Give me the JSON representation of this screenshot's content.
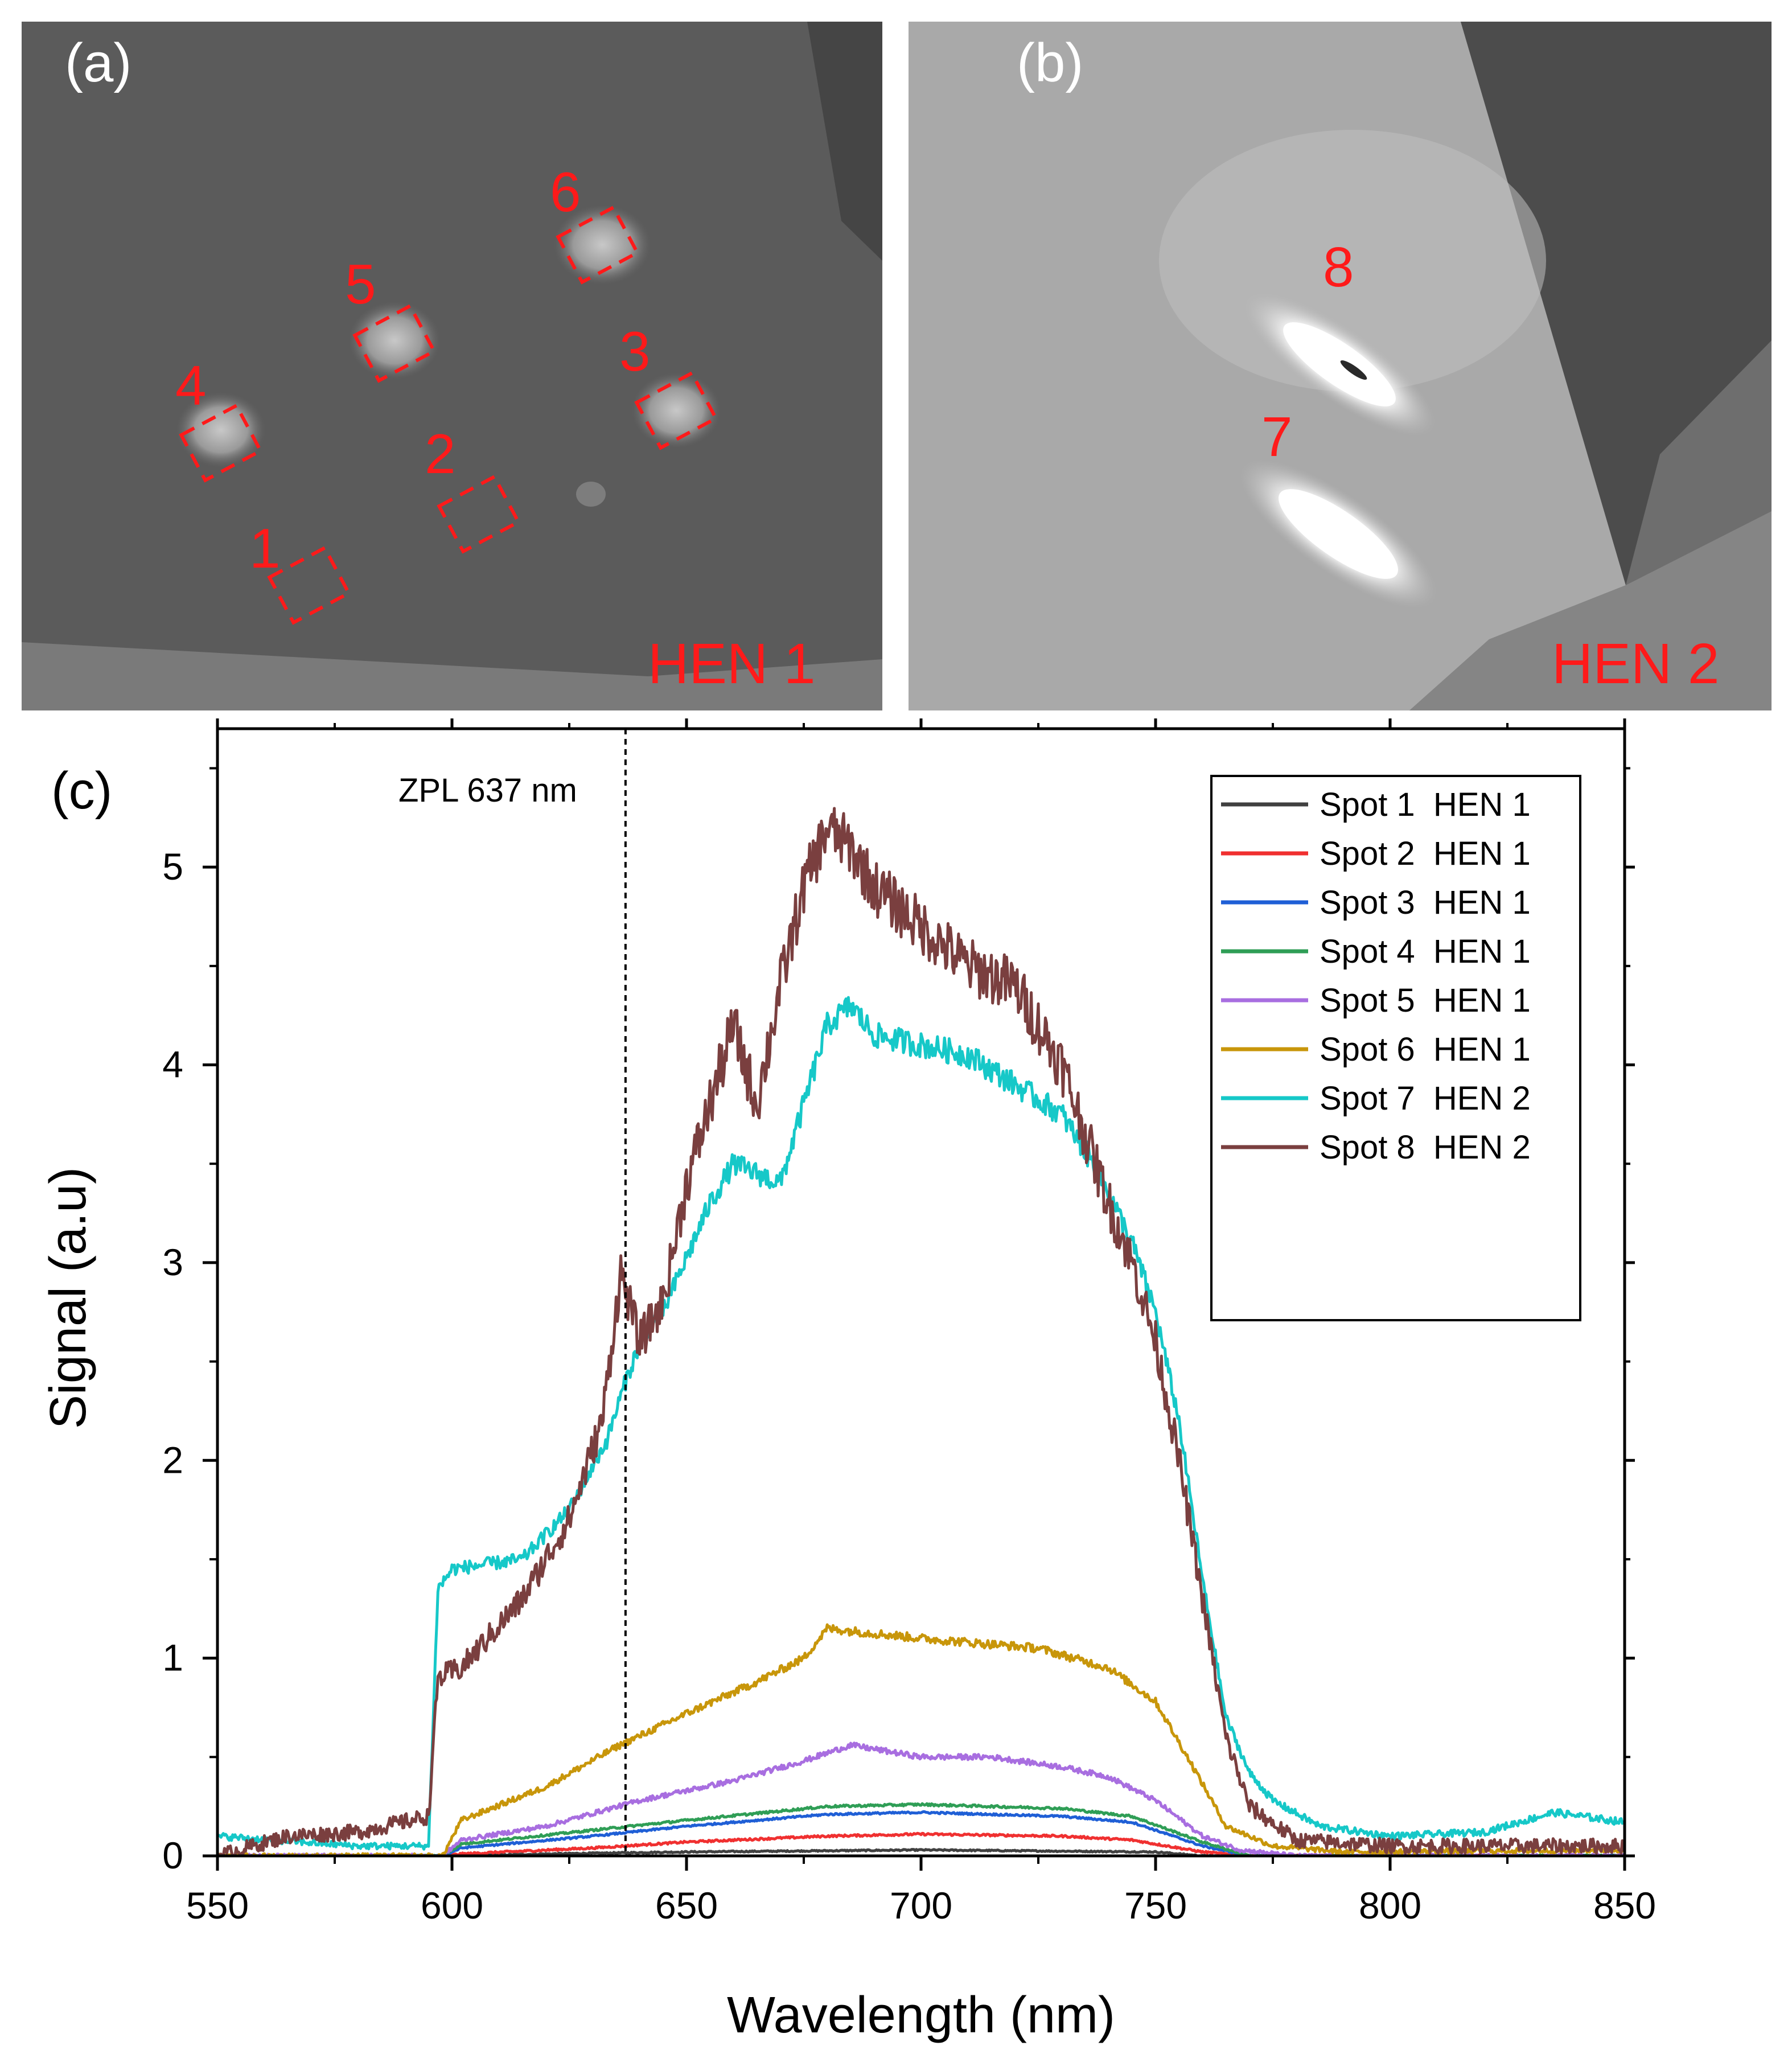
{
  "panels": {
    "a": {
      "label": "(a)",
      "sample": "HEN 1",
      "spots": [
        "1",
        "2",
        "3",
        "4",
        "5",
        "6"
      ]
    },
    "b": {
      "label": "(b)",
      "sample": "HEN 2",
      "spots": [
        "7",
        "8"
      ]
    }
  },
  "chart_data": {
    "type": "line",
    "panel_label": "(c)",
    "xlabel": "Wavelength (nm)",
    "ylabel": "Signal (a.u)",
    "xlim": [
      550,
      850
    ],
    "ylim": [
      0,
      5.7
    ],
    "xticks": [
      550,
      600,
      650,
      700,
      750,
      800,
      850
    ],
    "yticks": [
      0,
      1,
      2,
      3,
      4,
      5
    ],
    "legend_position": "top-right",
    "annotation": {
      "text": "ZPL 637 nm",
      "x": 637
    },
    "series": [
      {
        "name": "Spot 1  HEN 1",
        "color": "#404040",
        "noise": 0.008,
        "points": [
          [
            550,
            0.0
          ],
          [
            595,
            0.0
          ],
          [
            600,
            0.0
          ],
          [
            620,
            0.01
          ],
          [
            650,
            0.02
          ],
          [
            700,
            0.03
          ],
          [
            750,
            0.02
          ],
          [
            760,
            0.0
          ],
          [
            850,
            0.0
          ]
        ]
      },
      {
        "name": "Spot 2  HEN 1",
        "color": "#f03030",
        "noise": 0.012,
        "points": [
          [
            550,
            0.0
          ],
          [
            598,
            0.0
          ],
          [
            602,
            0.01
          ],
          [
            630,
            0.04
          ],
          [
            650,
            0.07
          ],
          [
            680,
            0.1
          ],
          [
            700,
            0.11
          ],
          [
            730,
            0.1
          ],
          [
            745,
            0.08
          ],
          [
            760,
            0.02
          ],
          [
            770,
            0.0
          ],
          [
            850,
            0.0
          ]
        ]
      },
      {
        "name": "Spot 3  HEN 1",
        "color": "#1f5fd6",
        "noise": 0.01,
        "points": [
          [
            550,
            0.0
          ],
          [
            598,
            0.0
          ],
          [
            602,
            0.04
          ],
          [
            630,
            0.1
          ],
          [
            650,
            0.15
          ],
          [
            680,
            0.21
          ],
          [
            700,
            0.22
          ],
          [
            730,
            0.2
          ],
          [
            745,
            0.17
          ],
          [
            760,
            0.05
          ],
          [
            770,
            0.0
          ],
          [
            850,
            0.0
          ]
        ]
      },
      {
        "name": "Spot 4  HEN 1",
        "color": "#2f9e56",
        "noise": 0.012,
        "points": [
          [
            550,
            0.0
          ],
          [
            598,
            0.0
          ],
          [
            602,
            0.06
          ],
          [
            630,
            0.13
          ],
          [
            650,
            0.18
          ],
          [
            680,
            0.25
          ],
          [
            700,
            0.26
          ],
          [
            730,
            0.24
          ],
          [
            745,
            0.2
          ],
          [
            760,
            0.07
          ],
          [
            770,
            0.0
          ],
          [
            850,
            0.0
          ]
        ]
      },
      {
        "name": "Spot 5  HEN 1",
        "color": "#a86ee0",
        "noise": 0.025,
        "points": [
          [
            550,
            0.0
          ],
          [
            598,
            0.0
          ],
          [
            602,
            0.08
          ],
          [
            620,
            0.15
          ],
          [
            640,
            0.28
          ],
          [
            660,
            0.38
          ],
          [
            675,
            0.48
          ],
          [
            685,
            0.56
          ],
          [
            700,
            0.5
          ],
          [
            715,
            0.5
          ],
          [
            730,
            0.45
          ],
          [
            740,
            0.4
          ],
          [
            750,
            0.28
          ],
          [
            760,
            0.1
          ],
          [
            768,
            0.03
          ],
          [
            780,
            0.0
          ],
          [
            850,
            0.0
          ]
        ]
      },
      {
        "name": "Spot 6  HEN 1",
        "color": "#c8960a",
        "noise": 0.03,
        "points": [
          [
            550,
            0.0
          ],
          [
            598,
            0.0
          ],
          [
            602,
            0.18
          ],
          [
            620,
            0.35
          ],
          [
            635,
            0.55
          ],
          [
            650,
            0.72
          ],
          [
            665,
            0.88
          ],
          [
            675,
            1.0
          ],
          [
            680,
            1.15
          ],
          [
            700,
            1.1
          ],
          [
            725,
            1.05
          ],
          [
            740,
            0.95
          ],
          [
            750,
            0.78
          ],
          [
            758,
            0.45
          ],
          [
            765,
            0.15
          ],
          [
            775,
            0.05
          ],
          [
            790,
            0.02
          ],
          [
            850,
            0.03
          ]
        ]
      },
      {
        "name": "Spot 7  HEN 2",
        "color": "#16c8c8",
        "noise": 0.04,
        "points": [
          [
            550,
            0.1
          ],
          [
            580,
            0.05
          ],
          [
            595,
            0.05
          ],
          [
            597,
            1.35
          ],
          [
            600,
            1.45
          ],
          [
            615,
            1.5
          ],
          [
            625,
            1.75
          ],
          [
            633,
            2.1
          ],
          [
            637,
            2.4
          ],
          [
            641,
            2.65
          ],
          [
            645,
            2.75
          ],
          [
            655,
            3.3
          ],
          [
            660,
            3.5
          ],
          [
            665,
            3.45
          ],
          [
            670,
            3.4
          ],
          [
            675,
            3.8
          ],
          [
            680,
            4.2
          ],
          [
            685,
            4.3
          ],
          [
            690,
            4.15
          ],
          [
            700,
            4.1
          ],
          [
            710,
            4.05
          ],
          [
            720,
            3.9
          ],
          [
            730,
            3.75
          ],
          [
            738,
            3.45
          ],
          [
            745,
            3.1
          ],
          [
            750,
            2.75
          ],
          [
            755,
            2.2
          ],
          [
            760,
            1.4
          ],
          [
            765,
            0.7
          ],
          [
            770,
            0.42
          ],
          [
            775,
            0.28
          ],
          [
            785,
            0.15
          ],
          [
            800,
            0.1
          ],
          [
            820,
            0.12
          ],
          [
            835,
            0.22
          ],
          [
            850,
            0.17
          ]
        ]
      },
      {
        "name": "Spot 8  HEN 2",
        "color": "#7a3f3f",
        "noise": 0.09,
        "points": [
          [
            550,
            0.0
          ],
          [
            565,
            0.1
          ],
          [
            580,
            0.12
          ],
          [
            595,
            0.2
          ],
          [
            597,
            0.9
          ],
          [
            602,
            0.95
          ],
          [
            615,
            1.3
          ],
          [
            625,
            1.7
          ],
          [
            632,
            2.2
          ],
          [
            636,
            2.95
          ],
          [
            640,
            2.6
          ],
          [
            645,
            2.8
          ],
          [
            650,
            3.4
          ],
          [
            655,
            3.8
          ],
          [
            660,
            4.2
          ],
          [
            665,
            3.8
          ],
          [
            670,
            4.4
          ],
          [
            675,
            4.9
          ],
          [
            680,
            5.2
          ],
          [
            685,
            5.1
          ],
          [
            690,
            4.9
          ],
          [
            700,
            4.7
          ],
          [
            710,
            4.5
          ],
          [
            720,
            4.4
          ],
          [
            730,
            4.0
          ],
          [
            740,
            3.3
          ],
          [
            745,
            3.0
          ],
          [
            750,
            2.6
          ],
          [
            755,
            2.0
          ],
          [
            760,
            1.3
          ],
          [
            765,
            0.6
          ],
          [
            770,
            0.25
          ],
          [
            780,
            0.08
          ],
          [
            800,
            0.05
          ],
          [
            820,
            0.05
          ],
          [
            850,
            0.05
          ]
        ]
      }
    ]
  }
}
